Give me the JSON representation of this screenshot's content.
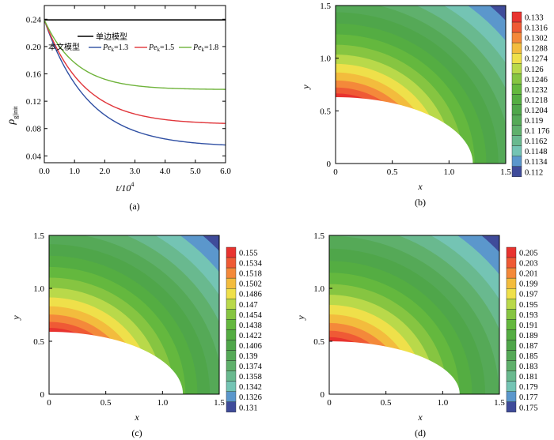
{
  "panel_labels": [
    "(a)",
    "(b)",
    "(c)",
    "(d)"
  ],
  "chart_data": [
    {
      "panel": "(a)",
      "type": "line",
      "xlabel": "t/10",
      "xlabel_sup": "4",
      "ylabel": "ρ",
      "ylabel_sub": "g|init",
      "xlim": [
        0,
        6.0
      ],
      "ylim": [
        0.03,
        0.26
      ],
      "xticks": [
        "0.0",
        "1.0",
        "2.0",
        "3.0",
        "4.0",
        "5.0",
        "6.0"
      ],
      "yticks": [
        "0.04",
        "0.08",
        "0.12",
        "0.16",
        "0.20",
        "0.24"
      ],
      "legend": {
        "single_edge_label": "单边模型",
        "this_model_label": "本文模型",
        "pe_labels": [
          "Pe",
          "Pe",
          "Pe"
        ],
        "pe_subs": [
          "k",
          "k",
          "k"
        ],
        "pe_values": [
          "=1.3",
          "=1.5",
          "=1.8"
        ]
      },
      "series": [
        {
          "name": "单边模型",
          "color": "#000000",
          "x": [
            0,
            6.0
          ],
          "values": [
            0.239,
            0.239
          ]
        },
        {
          "name": "Pe_k=1.3",
          "color": "#2f4fa3",
          "start": 0.239,
          "end": 0.053,
          "tau": 1.45
        },
        {
          "name": "Pe_k=1.5",
          "color": "#e0353a",
          "start": 0.239,
          "end": 0.086,
          "tau": 1.3
        },
        {
          "name": "Pe_k=1.8",
          "color": "#6fb33b",
          "start": 0.239,
          "end": 0.137,
          "tau": 1.05
        }
      ]
    },
    {
      "panel": "(b)",
      "type": "heatmap",
      "xlabel": "x",
      "ylabel": "y",
      "xlim": [
        0,
        1.5
      ],
      "ylim": [
        0,
        1.5
      ],
      "xticks": [
        "0",
        "0.5",
        "1.0",
        "1.5"
      ],
      "yticks": [
        "0",
        "0.5",
        "1.0",
        "1.5"
      ],
      "inner_radius": 0.63,
      "outer_radius_x": 1.21,
      "levels": [
        "0.133",
        "0.1316",
        "0.1302",
        "0.1288",
        "0.1274",
        "0.126",
        "0.1246",
        "0.1232",
        "0.1218",
        "0.1204",
        "0.119",
        "0.1 176",
        "0.1162",
        "0.1148",
        "0.1134",
        "0.112"
      ]
    },
    {
      "panel": "(c)",
      "type": "heatmap",
      "xlabel": "x",
      "ylabel": "y",
      "xlim": [
        0,
        1.5
      ],
      "ylim": [
        0,
        1.5
      ],
      "xticks": [
        "0",
        "0.5",
        "1.0",
        "1.5"
      ],
      "yticks": [
        "0",
        "0.5",
        "1.0",
        "1.5"
      ],
      "inner_radius": 0.59,
      "outer_radius_x": 1.18,
      "levels": [
        "0.155",
        "0.1534",
        "0.1518",
        "0.1502",
        "0.1486",
        "0.147",
        "0.1454",
        "0.1438",
        "0.1422",
        "0.1406",
        "0.139",
        "0.1374",
        "0.1358",
        "0.1342",
        "0.1326",
        "0.131"
      ]
    },
    {
      "panel": "(d)",
      "type": "heatmap",
      "xlabel": "x",
      "ylabel": "y",
      "xlim": [
        0,
        1.5
      ],
      "ylim": [
        0,
        1.5
      ],
      "xticks": [
        "0",
        "0.5",
        "1.0",
        "1.5"
      ],
      "yticks": [
        "0",
        "0.5",
        "1.0",
        "1.5"
      ],
      "inner_radius": 0.5,
      "outer_radius_x": 1.15,
      "levels": [
        "0.205",
        "0.203",
        "0.201",
        "0.199",
        "0.197",
        "0.195",
        "0.193",
        "0.191",
        "0.189",
        "0.187",
        "0.185",
        "0.183",
        "0.181",
        "0.179",
        "0.177",
        "0.175"
      ]
    }
  ],
  "colormap": [
    "#e8332f",
    "#ef5a35",
    "#f4893a",
    "#f3bc3d",
    "#efe04a",
    "#b9d94a",
    "#86c541",
    "#64b83e",
    "#54ad42",
    "#4fa64a",
    "#55a957",
    "#5fb06c",
    "#69b98f",
    "#74c4b4",
    "#5b97cc",
    "#3f4b9a"
  ]
}
